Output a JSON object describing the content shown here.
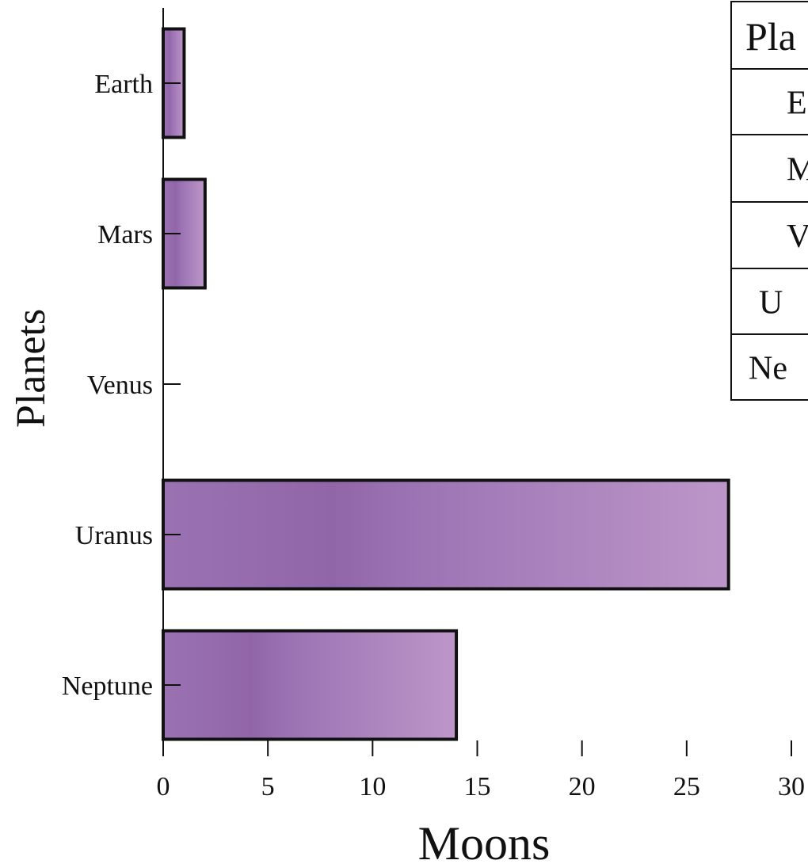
{
  "chart_data": {
    "type": "bar",
    "orientation": "horizontal",
    "categories": [
      "Earth",
      "Mars",
      "Venus",
      "Uranus",
      "Neptune"
    ],
    "values": [
      1,
      2,
      0,
      27,
      14
    ],
    "xlabel": "Moons",
    "ylabel": "Planets",
    "xlim": [
      0,
      30
    ],
    "xticks": [
      0,
      5,
      10,
      15,
      20,
      25,
      30
    ],
    "grid": false,
    "bar_color": "#9d6fb0",
    "bar_edge_color": "#111111"
  },
  "data_table": {
    "header": "Pla",
    "rows": [
      "E",
      "M",
      "V",
      "U",
      "Ne"
    ]
  }
}
